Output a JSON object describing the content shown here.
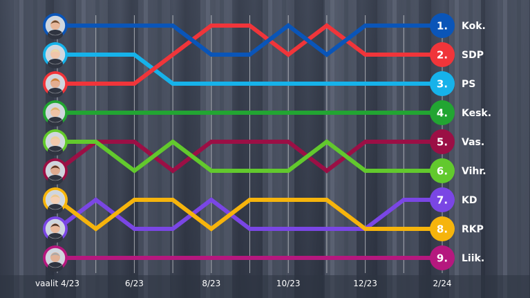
{
  "chart_data": {
    "type": "line",
    "title": "",
    "x": [
      "vaalit 4/23",
      "5/23",
      "6/23",
      "7/23",
      "8/23",
      "9/23",
      "10/23",
      "11/23",
      "12/23",
      "1/24",
      "2/24"
    ],
    "x_tick_labels": [
      "vaalit 4/23",
      "6/23",
      "8/23",
      "10/23",
      "12/23",
      "2/24"
    ],
    "y_axis": "rank",
    "ylim": [
      1,
      9
    ],
    "y_inverted": true,
    "grid": "vertical",
    "series": [
      {
        "name": "Kok.",
        "rank_label": "1.",
        "color": "#0a55b8",
        "values": [
          1,
          1,
          1,
          1,
          2,
          2,
          1,
          2,
          1,
          1,
          1
        ]
      },
      {
        "name": "SDP",
        "rank_label": "2.",
        "color": "#f0353a",
        "values": [
          3,
          3,
          3,
          2,
          1,
          1,
          2,
          1,
          2,
          2,
          2
        ]
      },
      {
        "name": "PS",
        "rank_label": "3.",
        "color": "#16b2ea",
        "values": [
          2,
          2,
          2,
          3,
          3,
          3,
          3,
          3,
          3,
          3,
          3
        ]
      },
      {
        "name": "Kesk.",
        "rank_label": "4.",
        "color": "#22a532",
        "values": [
          4,
          4,
          4,
          4,
          4,
          4,
          4,
          4,
          4,
          4,
          4
        ]
      },
      {
        "name": "Vas.",
        "rank_label": "5.",
        "color": "#9b0f45",
        "values": [
          6,
          5,
          5,
          6,
          5,
          5,
          5,
          6,
          5,
          5,
          5
        ]
      },
      {
        "name": "Vihr.",
        "rank_label": "6.",
        "color": "#62c92d",
        "values": [
          5,
          5,
          6,
          5,
          6,
          6,
          6,
          5,
          6,
          6,
          6
        ]
      },
      {
        "name": "KD",
        "rank_label": "7.",
        "color": "#7a46e4",
        "values": [
          8,
          7,
          8,
          8,
          7,
          8,
          8,
          8,
          8,
          7,
          7
        ]
      },
      {
        "name": "RKP",
        "rank_label": "8.",
        "color": "#f6b40c",
        "values": [
          7,
          8,
          7,
          7,
          8,
          7,
          7,
          7,
          8,
          8,
          8
        ]
      },
      {
        "name": "Liik.",
        "rank_label": "9.",
        "color": "#b5187e",
        "values": [
          9,
          9,
          9,
          9,
          9,
          9,
          9,
          9,
          9,
          9,
          9
        ]
      }
    ]
  },
  "leaders": [
    {
      "party": "Kok.",
      "rank": 1,
      "icon": "leader-portrait-icon"
    },
    {
      "party": "PS",
      "rank": 2,
      "icon": "leader-portrait-icon"
    },
    {
      "party": "SDP",
      "rank": 3,
      "icon": "leader-portrait-icon"
    },
    {
      "party": "Kesk.",
      "rank": 4,
      "icon": "leader-portrait-icon"
    },
    {
      "party": "Vihr.",
      "rank": 5,
      "icon": "leader-portrait-icon"
    },
    {
      "party": "Vas.",
      "rank": 6,
      "icon": "leader-portrait-icon"
    },
    {
      "party": "RKP",
      "rank": 7,
      "icon": "leader-portrait-icon"
    },
    {
      "party": "KD",
      "rank": 8,
      "icon": "leader-portrait-icon"
    },
    {
      "party": "Liik.",
      "rank": 9,
      "icon": "leader-portrait-icon"
    }
  ],
  "background": {
    "icon": "parliament-building-columns-photo"
  }
}
